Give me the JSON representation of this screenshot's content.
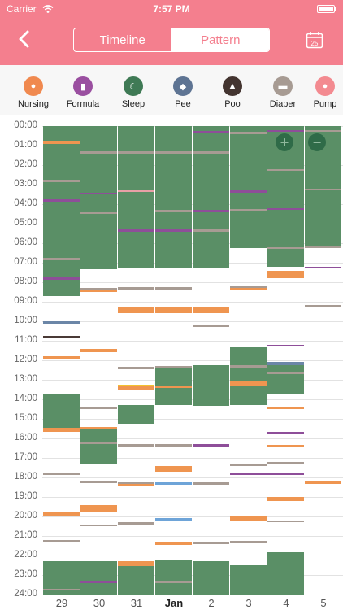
{
  "status_bar": {
    "carrier": "Carrier",
    "time": "7:57 PM"
  },
  "header": {
    "tabs": [
      {
        "label": "Timeline",
        "active": true
      },
      {
        "label": "Pattern",
        "active": false
      }
    ],
    "calendar_day": "25",
    "color": "#f47f8e"
  },
  "categories": [
    {
      "label": "Nursing",
      "icon": "nursing-icon",
      "color": "#f0894f"
    },
    {
      "label": "Formula",
      "icon": "formula-bottle-icon",
      "color": "#9a4fa0"
    },
    {
      "label": "Sleep",
      "icon": "sleep-moon-icon",
      "color": "#3f7a55"
    },
    {
      "label": "Pee",
      "icon": "pee-icon",
      "color": "#5e7493"
    },
    {
      "label": "Poo",
      "icon": "poo-icon",
      "color": "#433430"
    },
    {
      "label": "Diaper",
      "icon": "diaper-icon",
      "color": "#a79b93"
    },
    {
      "label": "Pump",
      "icon": "pump-icon",
      "color": "#f38a90"
    }
  ],
  "hours": [
    "00:00",
    "01:00",
    "02:00",
    "03:00",
    "04:00",
    "05:00",
    "06:00",
    "07:00",
    "08:00",
    "09:00",
    "10:00",
    "11:00",
    "12:00",
    "13:00",
    "14:00",
    "15:00",
    "16:00",
    "17:00",
    "18:00",
    "19:00",
    "20:00",
    "21:00",
    "22:00",
    "23:00",
    "24:00"
  ],
  "days": [
    {
      "label": "29",
      "bold": false
    },
    {
      "label": "30",
      "bold": false
    },
    {
      "label": "31",
      "bold": false
    },
    {
      "label": "Jan",
      "bold": true
    },
    {
      "label": "2",
      "bold": false
    },
    {
      "label": "3",
      "bold": false
    },
    {
      "label": "4",
      "bold": false
    },
    {
      "label": "5",
      "bold": false
    }
  ],
  "colors": {
    "sleep": "#5a8f66",
    "nursing": "#ef9550",
    "formula": "#8e4e99",
    "diaper": "#a79b93",
    "pee": "#6b86a7",
    "poo": "#4a3a36",
    "pump": "#e8a0a6",
    "formula_yellow": "#f2c12e",
    "pee_light": "#6ea4d8"
  },
  "events": [
    [
      {
        "t": "sleep",
        "s": 0.0,
        "e": 8.7
      },
      {
        "t": "nursing",
        "s": 0.75,
        "e": 0.9
      },
      {
        "t": "diaper",
        "s": 2.75,
        "e": 2.85
      },
      {
        "t": "formula",
        "s": 3.75,
        "e": 3.85
      },
      {
        "t": "diaper",
        "s": 6.75,
        "e": 6.85
      },
      {
        "t": "formula",
        "s": 7.75,
        "e": 7.85
      },
      {
        "t": "pee",
        "s": 10.0,
        "e": 10.1
      },
      {
        "t": "poo",
        "s": 10.75,
        "e": 10.85
      },
      {
        "t": "nursing",
        "s": 11.8,
        "e": 11.95
      },
      {
        "t": "sleep",
        "s": 13.75,
        "e": 15.6
      },
      {
        "t": "nursing",
        "s": 15.45,
        "e": 15.65
      },
      {
        "t": "diaper",
        "s": 17.75,
        "e": 17.85
      },
      {
        "t": "nursing",
        "s": 19.8,
        "e": 19.95
      },
      {
        "t": "diaper",
        "s": 21.2,
        "e": 21.3
      },
      {
        "t": "sleep",
        "s": 22.3,
        "e": 24.0
      },
      {
        "t": "diaper",
        "s": 23.7,
        "e": 23.8
      }
    ],
    [
      {
        "t": "sleep",
        "s": 0.0,
        "e": 7.35
      },
      {
        "t": "diaper",
        "s": 1.3,
        "e": 1.4
      },
      {
        "t": "formula",
        "s": 3.4,
        "e": 3.5
      },
      {
        "t": "diaper",
        "s": 4.4,
        "e": 4.5
      },
      {
        "t": "diaper",
        "s": 8.3,
        "e": 8.4
      },
      {
        "t": "nursing",
        "s": 8.4,
        "e": 8.5
      },
      {
        "t": "nursing",
        "s": 11.4,
        "e": 11.6
      },
      {
        "t": "diaper",
        "s": 14.4,
        "e": 14.5
      },
      {
        "t": "nursing",
        "s": 15.4,
        "e": 15.55
      },
      {
        "t": "sleep",
        "s": 15.55,
        "e": 17.35
      },
      {
        "t": "diaper",
        "s": 16.2,
        "e": 16.3
      },
      {
        "t": "diaper",
        "s": 18.2,
        "e": 18.3
      },
      {
        "t": "nursing",
        "s": 19.4,
        "e": 19.8
      },
      {
        "t": "diaper",
        "s": 20.4,
        "e": 20.5
      },
      {
        "t": "sleep",
        "s": 22.3,
        "e": 24.0
      },
      {
        "t": "formula",
        "s": 23.3,
        "e": 23.4
      }
    ],
    [
      {
        "t": "sleep",
        "s": 0.0,
        "e": 7.3
      },
      {
        "t": "diaper",
        "s": 1.3,
        "e": 1.4
      },
      {
        "t": "pump",
        "s": 3.25,
        "e": 3.35
      },
      {
        "t": "formula",
        "s": 5.3,
        "e": 5.4
      },
      {
        "t": "diaper",
        "s": 8.25,
        "e": 8.35
      },
      {
        "t": "nursing",
        "s": 9.3,
        "e": 9.6
      },
      {
        "t": "diaper",
        "s": 12.35,
        "e": 12.45
      },
      {
        "t": "formula_yellow",
        "s": 13.25,
        "e": 13.35
      },
      {
        "t": "nursing",
        "s": 13.35,
        "e": 13.5
      },
      {
        "t": "sleep",
        "s": 14.3,
        "e": 15.25
      },
      {
        "t": "diaper",
        "s": 16.3,
        "e": 16.4
      },
      {
        "t": "diaper",
        "s": 18.25,
        "e": 18.35
      },
      {
        "t": "nursing",
        "s": 18.35,
        "e": 18.45
      },
      {
        "t": "diaper",
        "s": 20.3,
        "e": 20.4
      },
      {
        "t": "nursing",
        "s": 22.3,
        "e": 22.55
      },
      {
        "t": "sleep",
        "s": 22.55,
        "e": 24.0
      }
    ],
    [
      {
        "t": "sleep",
        "s": 0.0,
        "e": 7.3
      },
      {
        "t": "diaper",
        "s": 1.3,
        "e": 1.4
      },
      {
        "t": "diaper",
        "s": 4.3,
        "e": 4.4
      },
      {
        "t": "formula",
        "s": 5.3,
        "e": 5.4
      },
      {
        "t": "diaper",
        "s": 8.25,
        "e": 8.35
      },
      {
        "t": "nursing",
        "s": 9.3,
        "e": 9.6
      },
      {
        "t": "diaper",
        "s": 12.3,
        "e": 12.4
      },
      {
        "t": "sleep",
        "s": 12.4,
        "e": 14.3
      },
      {
        "t": "nursing",
        "s": 13.3,
        "e": 13.4
      },
      {
        "t": "diaper",
        "s": 16.3,
        "e": 16.4
      },
      {
        "t": "nursing",
        "s": 17.4,
        "e": 17.7
      },
      {
        "t": "pee_light",
        "s": 18.25,
        "e": 18.35
      },
      {
        "t": "pee_light",
        "s": 20.1,
        "e": 20.2
      },
      {
        "t": "nursing",
        "s": 21.3,
        "e": 21.45
      },
      {
        "t": "sleep",
        "s": 22.25,
        "e": 24.0
      },
      {
        "t": "diaper",
        "s": 23.3,
        "e": 23.4
      }
    ],
    [
      {
        "t": "sleep",
        "s": 0.0,
        "e": 7.3
      },
      {
        "t": "formula",
        "s": 0.25,
        "e": 0.35
      },
      {
        "t": "diaper",
        "s": 1.3,
        "e": 1.4
      },
      {
        "t": "formula",
        "s": 4.3,
        "e": 4.4
      },
      {
        "t": "diaper",
        "s": 5.3,
        "e": 5.4
      },
      {
        "t": "nursing",
        "s": 9.3,
        "e": 9.6
      },
      {
        "t": "diaper",
        "s": 10.2,
        "e": 10.3
      },
      {
        "t": "sleep",
        "s": 12.25,
        "e": 14.35
      },
      {
        "t": "formula",
        "s": 16.3,
        "e": 16.4
      },
      {
        "t": "diaper",
        "s": 18.25,
        "e": 18.35
      },
      {
        "t": "diaper",
        "s": 21.3,
        "e": 21.4
      },
      {
        "t": "sleep",
        "s": 22.3,
        "e": 24.0
      }
    ],
    [
      {
        "t": "sleep",
        "s": 0.0,
        "e": 6.25
      },
      {
        "t": "diaper",
        "s": 0.3,
        "e": 0.4
      },
      {
        "t": "formula",
        "s": 3.3,
        "e": 3.4
      },
      {
        "t": "diaper",
        "s": 4.25,
        "e": 4.35
      },
      {
        "t": "diaper",
        "s": 8.2,
        "e": 8.3
      },
      {
        "t": "nursing",
        "s": 8.3,
        "e": 8.4
      },
      {
        "t": "sleep",
        "s": 11.35,
        "e": 14.3
      },
      {
        "t": "diaper",
        "s": 12.25,
        "e": 12.35
      },
      {
        "t": "nursing",
        "s": 13.1,
        "e": 13.35
      },
      {
        "t": "diaper",
        "s": 17.3,
        "e": 17.4
      },
      {
        "t": "formula",
        "s": 17.75,
        "e": 17.85
      },
      {
        "t": "nursing",
        "s": 20.0,
        "e": 20.25
      },
      {
        "t": "diaper",
        "s": 21.25,
        "e": 21.35
      },
      {
        "t": "sleep",
        "s": 22.5,
        "e": 24.0
      }
    ],
    [
      {
        "t": "sleep",
        "s": 0.0,
        "e": 7.2
      },
      {
        "t": "formula",
        "s": 0.2,
        "e": 0.3
      },
      {
        "t": "diaper",
        "s": 2.2,
        "e": 2.3
      },
      {
        "t": "formula",
        "s": 4.2,
        "e": 4.3
      },
      {
        "t": "diaper",
        "s": 6.2,
        "e": 6.3
      },
      {
        "t": "nursing",
        "s": 7.4,
        "e": 7.8
      },
      {
        "t": "formula",
        "s": 11.2,
        "e": 11.3
      },
      {
        "t": "pee",
        "s": 12.1,
        "e": 12.25
      },
      {
        "t": "sleep",
        "s": 12.25,
        "e": 13.7
      },
      {
        "t": "diaper",
        "s": 12.6,
        "e": 12.7
      },
      {
        "t": "nursing",
        "s": 14.4,
        "e": 14.5
      },
      {
        "t": "formula",
        "s": 15.65,
        "e": 15.75
      },
      {
        "t": "nursing",
        "s": 16.35,
        "e": 16.45
      },
      {
        "t": "diaper",
        "s": 17.2,
        "e": 17.3
      },
      {
        "t": "formula",
        "s": 17.75,
        "e": 17.85
      },
      {
        "t": "nursing",
        "s": 19.0,
        "e": 19.2
      },
      {
        "t": "diaper",
        "s": 20.2,
        "e": 20.3
      },
      {
        "t": "sleep",
        "s": 21.85,
        "e": 24.0
      }
    ],
    [
      {
        "t": "sleep",
        "s": 0.0,
        "e": 6.2
      },
      {
        "t": "diaper",
        "s": 0.2,
        "e": 0.3
      },
      {
        "t": "diaper",
        "s": 3.2,
        "e": 3.3
      },
      {
        "t": "diaper",
        "s": 6.15,
        "e": 6.25
      },
      {
        "t": "formula",
        "s": 7.2,
        "e": 7.3
      },
      {
        "t": "diaper",
        "s": 9.15,
        "e": 9.25
      },
      {
        "t": "nursing",
        "s": 18.2,
        "e": 18.35
      }
    ]
  ]
}
